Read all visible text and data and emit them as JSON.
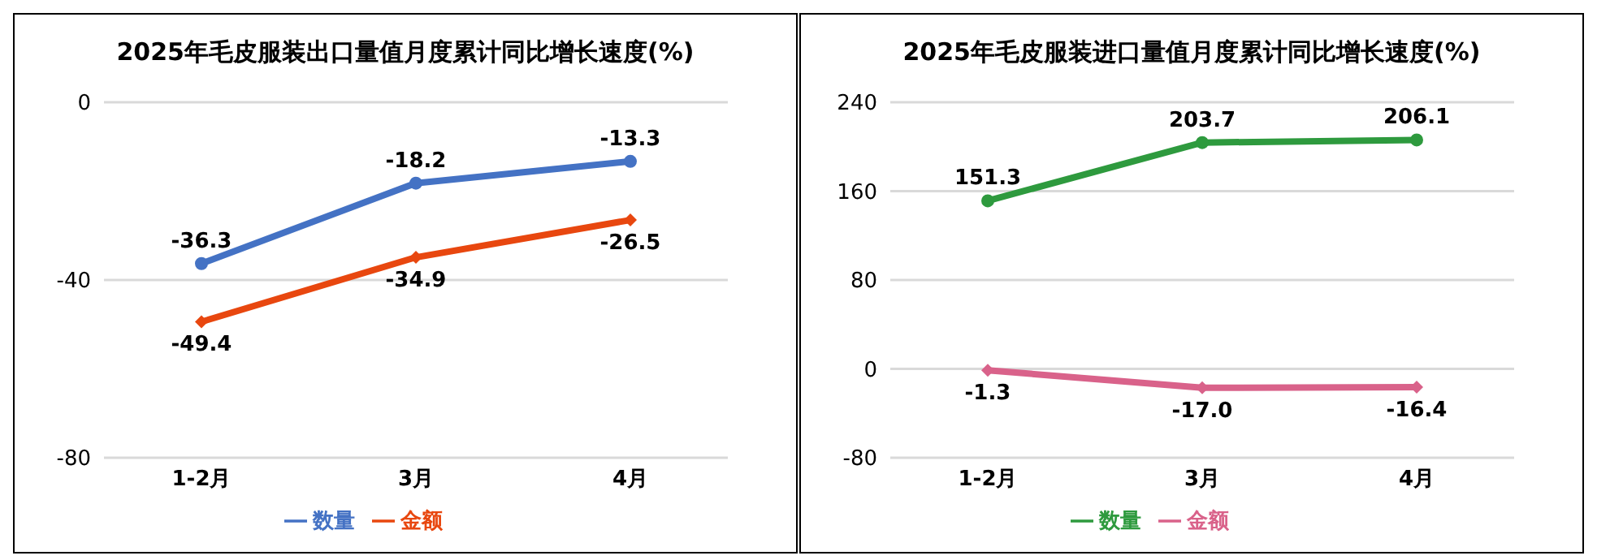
{
  "chart_data": [
    {
      "type": "line",
      "title": "2025年毛皮服装出口量值月度累计同比增长速度(%)",
      "categories": [
        "1-2月",
        "3月",
        "4月"
      ],
      "series": [
        {
          "name": "数量",
          "color": "#4472c4",
          "marker": "circle",
          "values": [
            -36.3,
            -18.2,
            -13.3
          ]
        },
        {
          "name": "金额",
          "color": "#e8470f",
          "marker": "diamond",
          "values": [
            -49.4,
            -34.9,
            -26.5
          ]
        }
      ],
      "ylim": [
        -80,
        0
      ],
      "yticks": [
        -80,
        -40,
        0
      ],
      "grid": "y",
      "legend": "bottom",
      "data_labels": true
    },
    {
      "type": "line",
      "title": "2025年毛皮服装进口量值月度累计同比增长速度(%)",
      "categories": [
        "1-2月",
        "3月",
        "4月"
      ],
      "series": [
        {
          "name": "数量",
          "color": "#2e9a3e",
          "marker": "circle",
          "values": [
            151.3,
            203.7,
            206.1
          ],
          "value_labels": [
            "151.3",
            "203.7",
            "206.1"
          ]
        },
        {
          "name": "金额",
          "color": "#d9628a",
          "marker": "diamond",
          "values": [
            -1.3,
            -17.0,
            -16.4
          ],
          "value_labels": [
            "-1.3",
            "-17.0",
            "-16.4"
          ]
        }
      ],
      "ylim": [
        -80,
        240
      ],
      "yticks": [
        -80,
        0,
        80,
        160,
        240
      ],
      "grid": "y",
      "legend": "bottom"
    }
  ]
}
